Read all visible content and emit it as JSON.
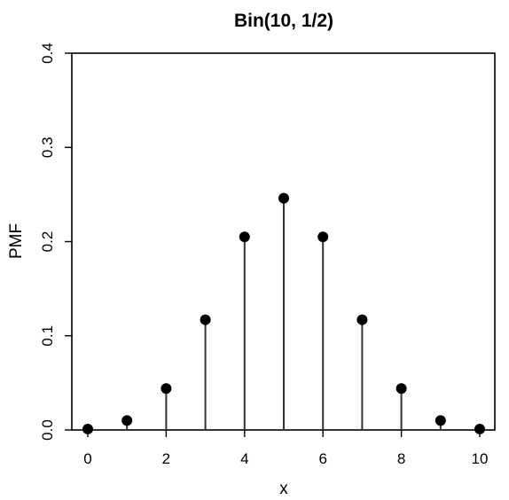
{
  "chart_data": {
    "type": "scatter",
    "style": "stem",
    "title": "Bin(10, 1/2)",
    "xlabel": "x",
    "ylabel": "PMF",
    "xlim": [
      0,
      10
    ],
    "ylim": [
      0,
      0.4
    ],
    "xticks": [
      0,
      2,
      4,
      6,
      8,
      10
    ],
    "yticks": [
      0.0,
      0.1,
      0.2,
      0.3,
      0.4
    ],
    "ytick_labels": [
      "0.0",
      "0.1",
      "0.2",
      "0.3",
      "0.4"
    ],
    "grid": false,
    "legend": "none",
    "series": [
      {
        "x": [
          0,
          1,
          2,
          3,
          4,
          5,
          6,
          7,
          8,
          9,
          10
        ],
        "y": [
          0.001,
          0.01,
          0.044,
          0.117,
          0.205,
          0.246,
          0.205,
          0.117,
          0.044,
          0.01,
          0.001
        ]
      }
    ],
    "colors": {
      "point": "#000000",
      "stem": "#333333",
      "axis": "#000000"
    }
  }
}
